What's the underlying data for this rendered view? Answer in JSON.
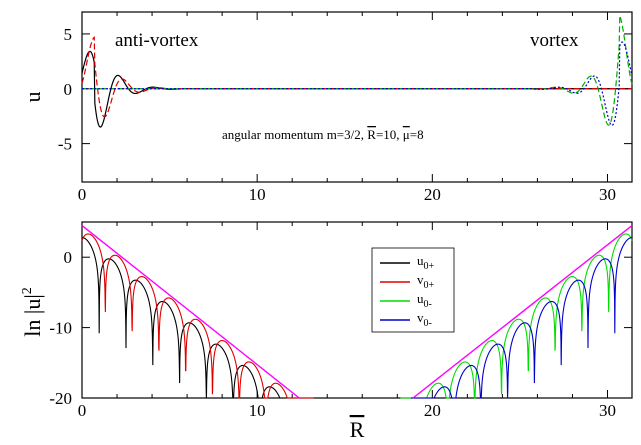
{
  "chart_data": [
    {
      "type": "line",
      "xlim": [
        0,
        31.4
      ],
      "ylim": [
        -8.5,
        7
      ],
      "xticks": [
        0,
        10,
        20,
        30
      ],
      "yticks": [
        5,
        0,
        -5
      ],
      "xticks_labeled": false,
      "ylabel": "u",
      "annotations": {
        "left": "anti-vortex",
        "right": "vortex",
        "params": "angular momentum m=3/2, R=10, μ=8",
        "params_parts": {
          "prefix": "angular momentum m=3/2, ",
          "r_symbol": "R",
          "r_value": "=10, ",
          "mu_symbol": "μ",
          "mu_value": "=8"
        }
      },
      "series": [
        {
          "color": "#000000",
          "dash": "solid",
          "side": "left",
          "x0": 0.7,
          "amp": 5.3,
          "k": 2.05,
          "decay": 1.05,
          "phase": 1.1
        },
        {
          "color": "#dd0000",
          "dash": "6,3",
          "side": "left",
          "x0": 0.7,
          "amp": 5.0,
          "k": 2.05,
          "decay": 1.05,
          "phase": 0.35
        },
        {
          "color": "#00aa00",
          "dash": "6,3",
          "side": "right",
          "x0": 0.7,
          "amp": 6.8,
          "k": 2.05,
          "decay": 1.05,
          "phase": 0.2
        },
        {
          "color": "#0000cc",
          "dash": "2,2",
          "side": "right",
          "x0": 0.7,
          "amp": 5.6,
          "k": 2.05,
          "decay": 1.05,
          "phase": 0.8
        }
      ]
    },
    {
      "type": "line",
      "xlim": [
        0,
        31.4
      ],
      "ylim": [
        -20,
        5
      ],
      "xticks": [
        0,
        10,
        20,
        30
      ],
      "yticks": [
        0,
        -10,
        -20
      ],
      "xlabel": "R",
      "ylabel": "ln |u|",
      "ylabel_sup": "2",
      "envelopes": [
        {
          "color": "#ff00ff",
          "x": [
            0,
            12.4
          ],
          "y": [
            4.5,
            -20
          ]
        },
        {
          "color": "#ff00ff",
          "x": [
            18.9,
            31.4
          ],
          "y": [
            -20,
            4.5
          ]
        }
      ],
      "legend": {
        "placement": "center",
        "entries": [
          {
            "label": "u",
            "sub": "0+",
            "color": "#000000"
          },
          {
            "label": "v",
            "sub": "0+",
            "color": "#dd0000"
          },
          {
            "label": "u",
            "sub": "0-",
            "color": "#00dd00"
          },
          {
            "label": "v",
            "sub": "0-",
            "color": "#0000cc"
          }
        ]
      },
      "series": [
        {
          "name": "u0+",
          "color": "#000000",
          "side": "left",
          "offset": 3.0,
          "slope": -1.98,
          "period": 1.53,
          "shift": 0.55
        },
        {
          "name": "v0+",
          "color": "#dd0000",
          "side": "left",
          "offset": 4.2,
          "slope": -1.98,
          "period": 1.53,
          "shift": 0.2
        },
        {
          "name": "u0-",
          "color": "#00dd00",
          "side": "right",
          "offset": 4.2,
          "slope": -1.98,
          "period": 1.53,
          "shift": 0.2
        },
        {
          "name": "v0-",
          "color": "#0000cc",
          "side": "right",
          "offset": 3.0,
          "slope": -1.98,
          "period": 1.53,
          "shift": 0.55
        }
      ]
    }
  ]
}
